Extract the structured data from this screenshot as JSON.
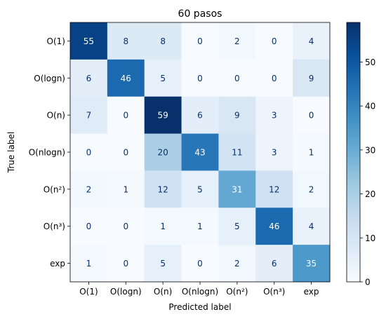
{
  "chart_data": {
    "type": "heatmap",
    "title": "60 pasos",
    "xlabel": "Predicted label",
    "ylabel": "True label",
    "x_categories": [
      "O(1)",
      "O(logn)",
      "O(n)",
      "O(nlogn)",
      "O(n²)",
      "O(n³)",
      "exp"
    ],
    "y_categories": [
      "O(1)",
      "O(logn)",
      "O(n)",
      "O(nlogn)",
      "O(n²)",
      "O(n³)",
      "exp"
    ],
    "values": [
      [
        55,
        8,
        8,
        0,
        2,
        0,
        4
      ],
      [
        6,
        46,
        5,
        0,
        0,
        0,
        9
      ],
      [
        7,
        0,
        59,
        6,
        9,
        3,
        0
      ],
      [
        0,
        0,
        20,
        43,
        11,
        3,
        1
      ],
      [
        2,
        1,
        12,
        5,
        31,
        12,
        2
      ],
      [
        0,
        0,
        1,
        1,
        5,
        46,
        4
      ],
      [
        1,
        0,
        5,
        0,
        2,
        6,
        35
      ]
    ],
    "colormap": "Blues",
    "colorbar": {
      "min": 0,
      "max": 59,
      "ticks": [
        0,
        10,
        20,
        30,
        40,
        50
      ]
    }
  }
}
